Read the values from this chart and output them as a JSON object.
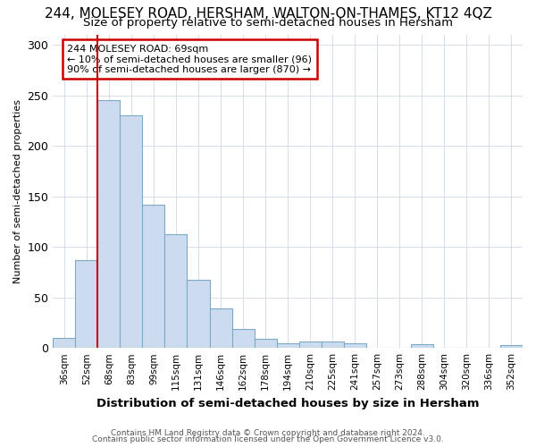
{
  "title": "244, MOLESEY ROAD, HERSHAM, WALTON-ON-THAMES, KT12 4QZ",
  "subtitle": "Size of property relative to semi-detached houses in Hersham",
  "xlabel": "Distribution of semi-detached houses by size in Hersham",
  "ylabel": "Number of semi-detached properties",
  "footer1": "Contains HM Land Registry data © Crown copyright and database right 2024.",
  "footer2": "Contains public sector information licensed under the Open Government Licence v3.0.",
  "annotation_title": "244 MOLESEY ROAD: 69sqm",
  "annotation_line2": "← 10% of semi-detached houses are smaller (96)",
  "annotation_line3": "90% of semi-detached houses are larger (870) →",
  "bar_categories": [
    "36sqm",
    "52sqm",
    "68sqm",
    "83sqm",
    "99sqm",
    "115sqm",
    "131sqm",
    "146sqm",
    "162sqm",
    "178sqm",
    "194sqm",
    "210sqm",
    "225sqm",
    "241sqm",
    "257sqm",
    "273sqm",
    "288sqm",
    "304sqm",
    "320sqm",
    "336sqm",
    "352sqm"
  ],
  "bar_values": [
    10,
    87,
    245,
    230,
    142,
    113,
    67,
    39,
    19,
    9,
    5,
    6,
    6,
    5,
    0,
    0,
    4,
    0,
    0,
    0,
    3
  ],
  "bar_color": "#ccdcee",
  "bar_edge_color": "#7aaac8",
  "vline_color": "#cc0000",
  "vline_x_index": 2,
  "ylim": [
    0,
    310
  ],
  "yticks": [
    0,
    50,
    100,
    150,
    200,
    250,
    300
  ],
  "bg_color": "#ffffff",
  "grid_color": "#d0d8e8",
  "annotation_box_color": "#ffffff",
  "annotation_box_edge": "#cc0000",
  "title_fontsize": 11,
  "subtitle_fontsize": 9.5
}
